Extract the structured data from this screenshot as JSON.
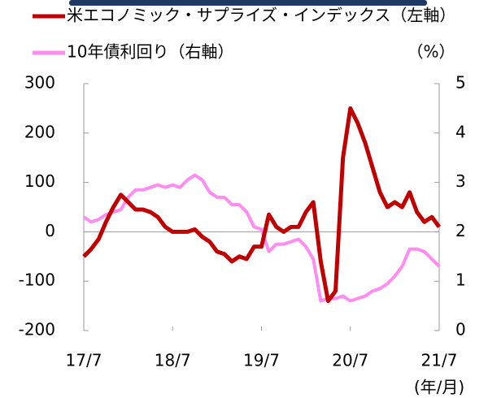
{
  "chart_data": {
    "type": "line",
    "series": [
      {
        "name": "米エコノミック・サプライズ・インデックス（左軸）",
        "color": "#c00000",
        "axis": "y",
        "values": [
          -50,
          -35,
          -15,
          20,
          50,
          75,
          60,
          45,
          45,
          40,
          30,
          10,
          0,
          0,
          0,
          5,
          -10,
          -20,
          -40,
          -45,
          -60,
          -50,
          -55,
          -30,
          -30,
          35,
          10,
          0,
          10,
          10,
          40,
          60,
          -60,
          -140,
          -120,
          150,
          250,
          220,
          180,
          130,
          80,
          50,
          60,
          50,
          80,
          40,
          20,
          30,
          10
        ]
      },
      {
        "name": "10年債利回り（右軸）",
        "color": "#ff8cf0",
        "axis": "y2",
        "values": [
          2.3,
          2.2,
          2.25,
          2.35,
          2.4,
          2.45,
          2.7,
          2.85,
          2.85,
          2.9,
          2.95,
          2.9,
          2.95,
          2.9,
          3.05,
          3.15,
          3.05,
          2.8,
          2.7,
          2.7,
          2.55,
          2.55,
          2.4,
          2.1,
          2.05,
          1.6,
          1.75,
          1.75,
          1.8,
          1.85,
          1.7,
          1.45,
          0.6,
          0.65,
          0.65,
          0.7,
          0.6,
          0.65,
          0.7,
          0.8,
          0.85,
          0.95,
          1.1,
          1.3,
          1.65,
          1.65,
          1.6,
          1.45,
          1.3
        ]
      }
    ],
    "x": [
      2017.5,
      2017.583,
      2017.667,
      2017.75,
      2017.833,
      2017.917,
      2018,
      2018.083,
      2018.167,
      2018.25,
      2018.333,
      2018.417,
      2018.5,
      2018.583,
      2018.667,
      2018.75,
      2018.833,
      2018.917,
      2019,
      2019.083,
      2019.167,
      2019.25,
      2019.333,
      2019.417,
      2019.5,
      2019.583,
      2019.667,
      2019.75,
      2019.833,
      2019.917,
      2020,
      2020.083,
      2020.167,
      2020.25,
      2020.333,
      2020.417,
      2020.5,
      2020.583,
      2020.667,
      2020.75,
      2020.833,
      2020.917,
      2021,
      2021.083,
      2021.167,
      2021.25,
      2021.333,
      2021.417,
      2021.5
    ],
    "xlim": [
      2017.5,
      2021.5
    ],
    "xticks": [
      {
        "value": 2017.5,
        "label": "17/7"
      },
      {
        "value": 2018.5,
        "label": "18/7"
      },
      {
        "value": 2019.5,
        "label": "19/7"
      },
      {
        "value": 2020.5,
        "label": "20/7"
      },
      {
        "value": 2021.5,
        "label": "21/7"
      }
    ],
    "ylim": [
      -200,
      300
    ],
    "yticks": [
      -200,
      -100,
      0,
      100,
      200,
      300
    ],
    "y2lim": [
      0,
      5
    ],
    "y2ticks": [
      0,
      1,
      2,
      3,
      4,
      5
    ],
    "y2_unit": "（%）",
    "x_unit": "(年/月)"
  }
}
